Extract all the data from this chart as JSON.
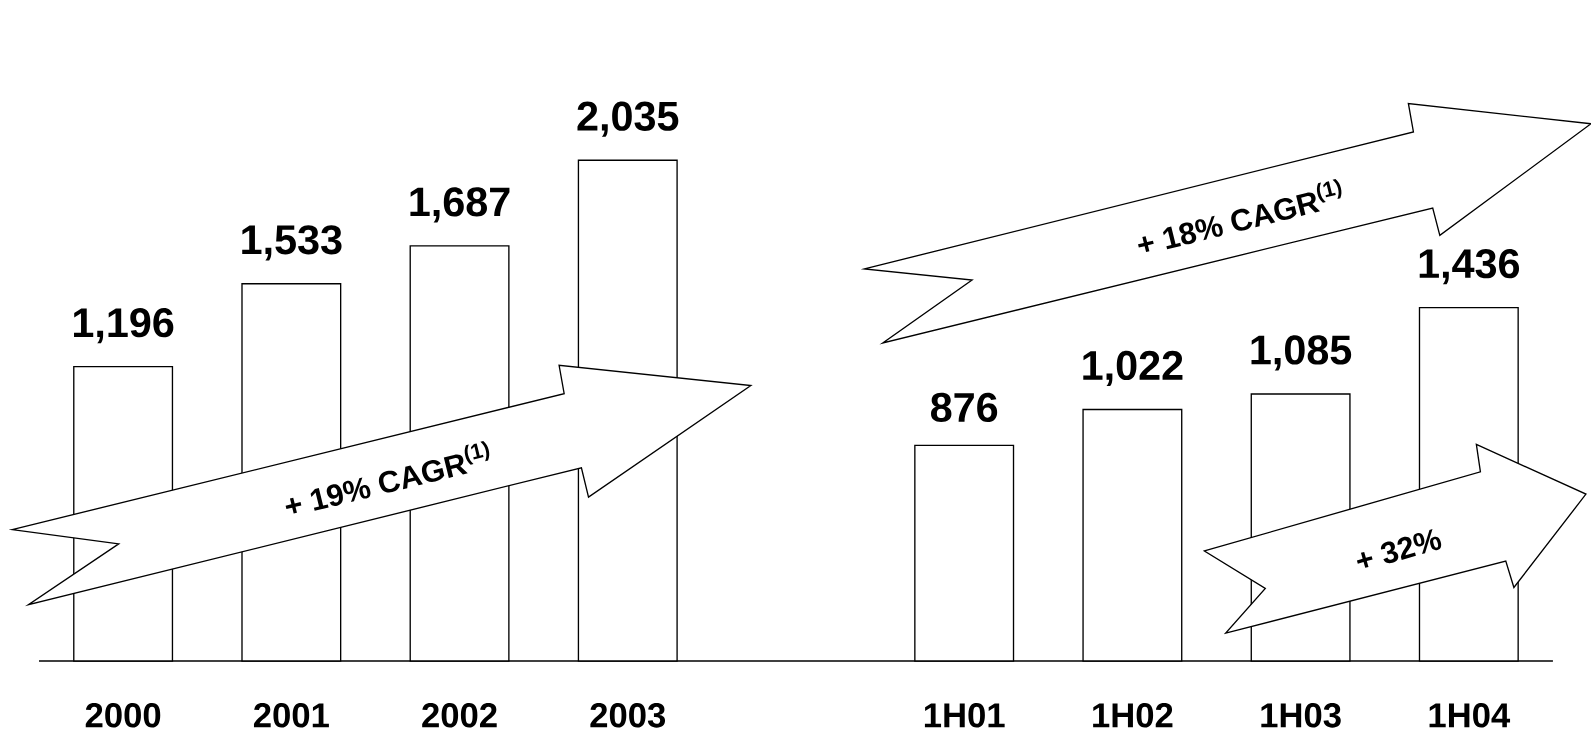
{
  "chart_data": {
    "type": "bar",
    "categories": [
      "2000",
      "2001",
      "2002",
      "2003",
      null,
      "1H01",
      "1H02",
      "1H03",
      "1H04"
    ],
    "values": [
      1196,
      1533,
      1687,
      2035,
      null,
      876,
      1022,
      1085,
      1436
    ],
    "value_labels": [
      "1,196",
      "1,533",
      "1,687",
      "2,035",
      null,
      "876",
      "1,022",
      "1,085",
      "1,436"
    ],
    "color": "#ffffff",
    "tick_labels": "x",
    "annotations": [
      "+ 19% CAGR$^{(1)}$",
      "+ 18% CAGR$^{(1)}$",
      "+ 32%"
    ]
  }
}
